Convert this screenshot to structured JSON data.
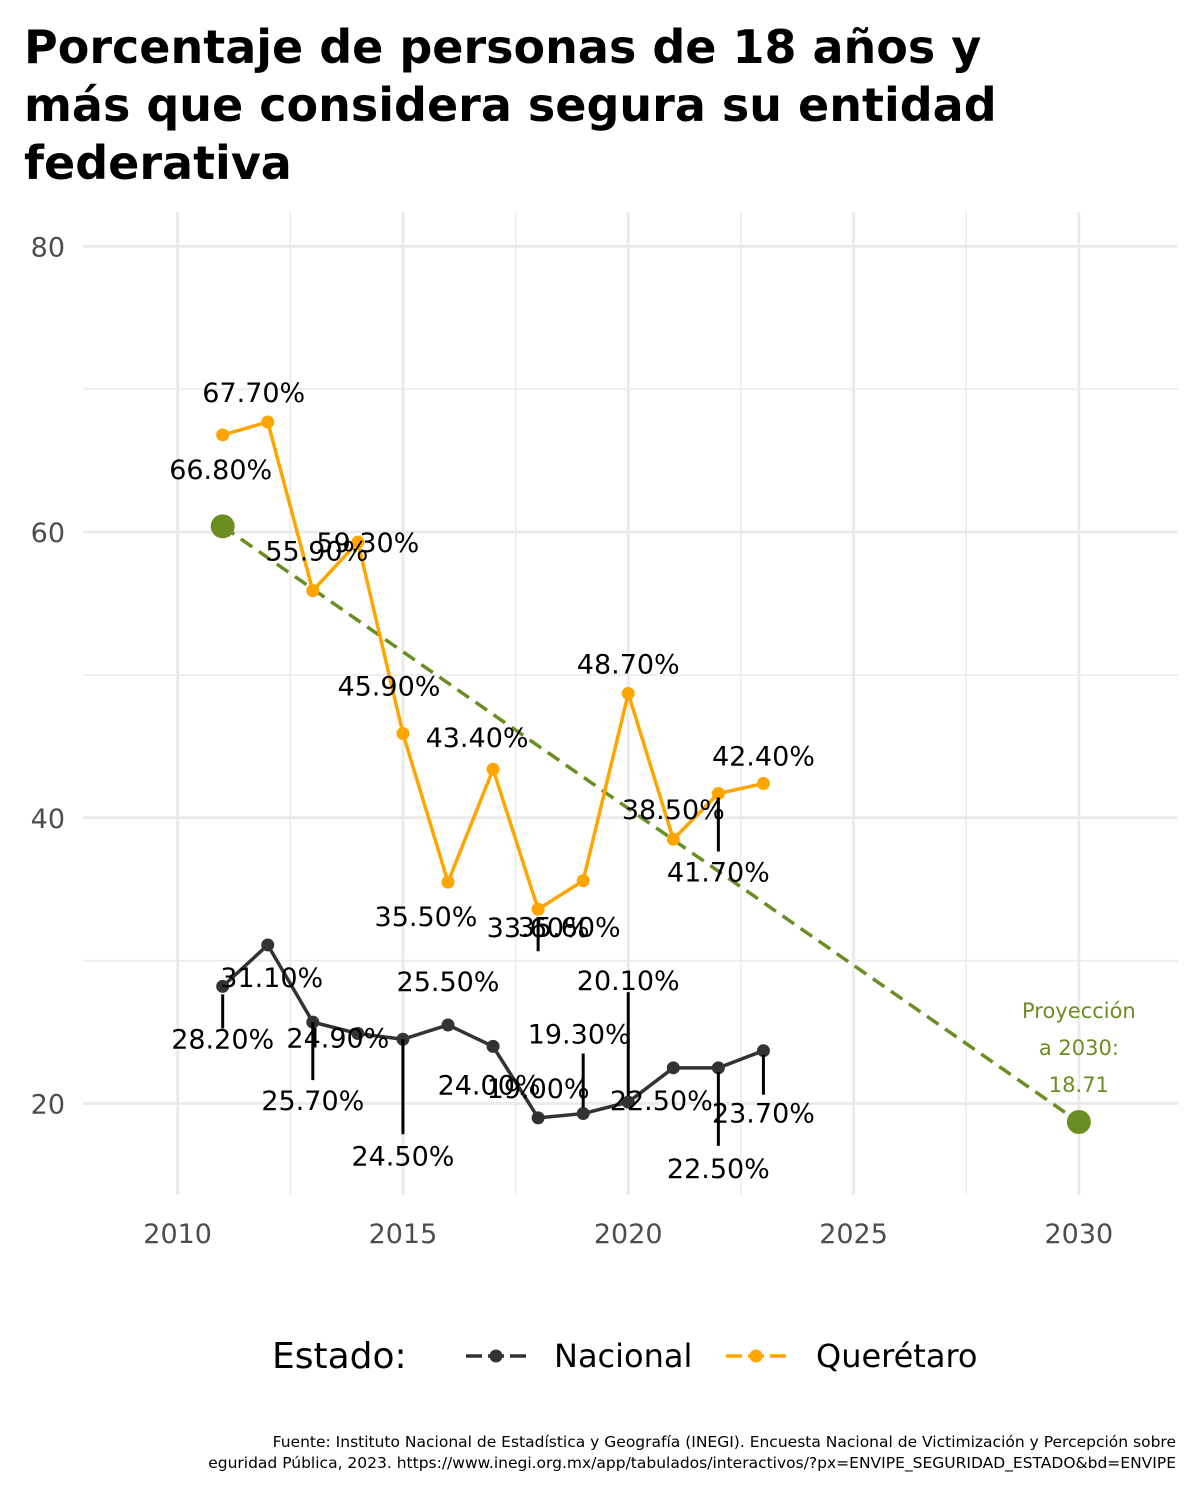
{
  "chart_data": {
    "type": "line",
    "title": "Porcentaje de personas de 18 años y más que considera segura su entidad federativa",
    "xlabel": "",
    "ylabel": "",
    "xlim": [
      2007.9,
      2032.2
    ],
    "ylim": [
      13.6,
      82.4
    ],
    "x_ticks": [
      "2010",
      "2015",
      "2020",
      "2025",
      "2030"
    ],
    "y_ticks": [
      "20",
      "40",
      "60",
      "80"
    ],
    "grid": true,
    "legend": {
      "title": "Estado:",
      "position": "bottom"
    },
    "series": [
      {
        "name": "Nacional",
        "color": "#333333",
        "x": [
          2011,
          2012,
          2013,
          2014,
          2015,
          2016,
          2017,
          2018,
          2019,
          2020,
          2021,
          2022,
          2023
        ],
        "values": [
          28.2,
          31.1,
          25.7,
          24.9,
          24.5,
          25.5,
          24.0,
          19.0,
          19.3,
          20.1,
          22.5,
          22.5,
          23.7
        ],
        "labels": [
          "28.20%",
          "31.10%",
          "25.70%",
          "24.90%",
          "24.50%",
          "25.50%",
          "24.00%",
          "19.00%",
          "19.30%",
          "20.10%",
          "22.50%",
          "22.50%",
          "23.70%"
        ]
      },
      {
        "name": "Querétaro",
        "color": "#FFA500",
        "x": [
          2011,
          2012,
          2013,
          2014,
          2015,
          2016,
          2017,
          2018,
          2019,
          2020,
          2021,
          2022,
          2023
        ],
        "values": [
          66.8,
          67.7,
          55.9,
          59.3,
          45.9,
          35.5,
          43.4,
          33.6,
          35.6,
          48.7,
          38.5,
          41.7,
          42.4
        ],
        "labels": [
          "66.80%",
          "67.70%",
          "55.90%",
          "59.30%",
          "45.90%",
          "35.50%",
          "43.40%",
          "33.60%",
          "35.60%",
          "48.70%",
          "38.50%",
          "41.70%",
          "42.40%"
        ]
      }
    ],
    "trend": {
      "color": "#6B8E23",
      "style": "dashed",
      "x": [
        2011,
        2030
      ],
      "values": [
        60.4,
        18.71
      ]
    },
    "annotation": {
      "lines": [
        "Proyección",
        "a 2030:",
        "18.71"
      ]
    }
  },
  "source": {
    "line1": "Fuente: Instituto Nacional de Estadística y Geografía (INEGI). Encuesta Nacional de Victimización y Percepción sobre",
    "line2": "eguridad Pública, 2023. https://www.inegi.org.mx/app/tabulados/interactivos/?px=ENVIPE_SEGURIDAD_ESTADO&bd=ENVIPE"
  }
}
